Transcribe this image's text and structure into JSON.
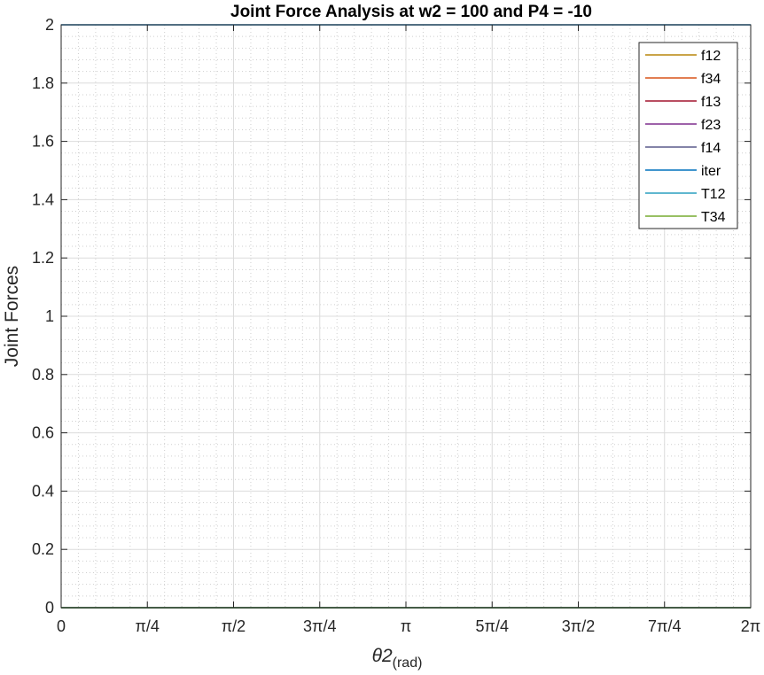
{
  "chart_data": {
    "type": "line",
    "title": "Joint Force Analysis at w2 = 100 and P4 = -10",
    "xlabel_main": "θ2",
    "xlabel_sub": "(rad)",
    "ylabel": "Joint Forces",
    "xlim": [
      0,
      6.283185307
    ],
    "ylim": [
      0,
      2
    ],
    "x_ticks": [
      {
        "value": 0,
        "label": "0"
      },
      {
        "value": 0.785398,
        "label": "π/4"
      },
      {
        "value": 1.570796,
        "label": "π/2"
      },
      {
        "value": 2.356194,
        "label": "3π/4"
      },
      {
        "value": 3.141593,
        "label": "π"
      },
      {
        "value": 3.926991,
        "label": "5π/4"
      },
      {
        "value": 4.712389,
        "label": "3π/2"
      },
      {
        "value": 5.497787,
        "label": "7π/4"
      },
      {
        "value": 6.283185,
        "label": "2π"
      }
    ],
    "y_ticks": [
      {
        "value": 0,
        "label": "0"
      },
      {
        "value": 0.2,
        "label": "0.2"
      },
      {
        "value": 0.4,
        "label": "0.4"
      },
      {
        "value": 0.6,
        "label": "0.6"
      },
      {
        "value": 0.8,
        "label": "0.8"
      },
      {
        "value": 1,
        "label": "1"
      },
      {
        "value": 1.2,
        "label": "1.2"
      },
      {
        "value": 1.4,
        "label": "1.4"
      },
      {
        "value": 1.6,
        "label": "1.6"
      },
      {
        "value": 1.8,
        "label": "1.8"
      },
      {
        "value": 2,
        "label": "2"
      }
    ],
    "grid": "major and minor (dotted)",
    "legend_position": "top-right",
    "x": [
      0,
      6.283185
    ],
    "series": [
      {
        "name": "f12",
        "color": "#b8860b",
        "values": [
          0,
          0
        ]
      },
      {
        "name": "f34",
        "color": "#d95319",
        "values": [
          0,
          0
        ]
      },
      {
        "name": "f13",
        "color": "#a2142f",
        "values": [
          0,
          0
        ]
      },
      {
        "name": "f23",
        "color": "#7e2f8e",
        "values": [
          0,
          0
        ]
      },
      {
        "name": "f14",
        "color": "#5a5a8c",
        "values": [
          0,
          0
        ]
      },
      {
        "name": "iter",
        "color": "#0072bd",
        "values": [
          2,
          2
        ]
      },
      {
        "name": "T12",
        "color": "#2a9fbf",
        "values": [
          0,
          0
        ]
      },
      {
        "name": "T34",
        "color": "#77ac30",
        "values": [
          0,
          0
        ]
      }
    ]
  }
}
